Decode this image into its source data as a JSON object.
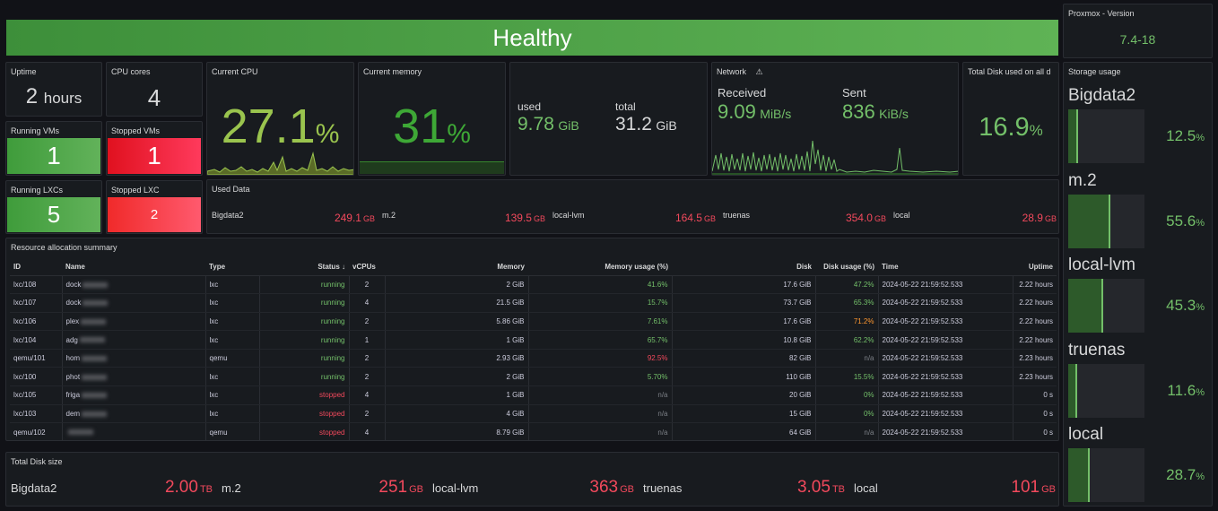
{
  "health": {
    "text": "Healthy",
    "color": "#56a64b"
  },
  "version": {
    "title": "Proxmox - Version",
    "value": "7.4-18"
  },
  "uptime": {
    "title": "Uptime",
    "value": "2",
    "unit": "hours"
  },
  "cpu_cores": {
    "title": "CPU cores",
    "value": "4"
  },
  "running_vms": {
    "title": "Running VMs",
    "value": "1"
  },
  "stopped_vms": {
    "title": "Stopped VMs",
    "value": "1"
  },
  "running_lxcs": {
    "title": "Running LXCs",
    "value": "5"
  },
  "stopped_lxc": {
    "title": "Stopped LXC",
    "value": "2"
  },
  "current_cpu": {
    "title": "Current CPU",
    "value": "27.1",
    "unit": "%"
  },
  "current_memory": {
    "title": "Current memory",
    "value": "31",
    "unit": "%"
  },
  "memory": {
    "used_label": "used",
    "used_value": "9.78",
    "used_unit": "GiB",
    "total_label": "total",
    "total_value": "31.2",
    "total_unit": "GiB"
  },
  "network": {
    "title": "Network",
    "received_label": "Received",
    "received_value": "9.09",
    "received_unit": "MiB/s",
    "sent_label": "Sent",
    "sent_value": "836",
    "sent_unit": "KiB/s"
  },
  "total_disk_used": {
    "title": "Total Disk used on all d",
    "value": "16.9",
    "unit": "%"
  },
  "used_data": {
    "title": "Used Data",
    "items": [
      {
        "name": "Bigdata2",
        "value": "249.1",
        "unit": "GB"
      },
      {
        "name": "m.2",
        "value": "139.5",
        "unit": "GB"
      },
      {
        "name": "local-lvm",
        "value": "164.5",
        "unit": "GB"
      },
      {
        "name": "truenas",
        "value": "354.0",
        "unit": "GB"
      },
      {
        "name": "local",
        "value": "28.9",
        "unit": "GB"
      }
    ]
  },
  "resource": {
    "title": "Resource allocation summary",
    "columns": [
      "ID",
      "Name",
      "Type",
      "Status",
      "vCPUs",
      "Memory",
      "Memory usage (%)",
      "Disk",
      "Disk usage (%)",
      "Time",
      "Uptime"
    ],
    "sort_icon": "↓",
    "rows": [
      {
        "id": "lxc/108",
        "name": "dock",
        "type": "lxc",
        "status": "running",
        "vcpus": "2",
        "memory": "2 GiB",
        "mem_usage": "41.6%",
        "disk": "17.6 GiB",
        "disk_usage": "47.2%",
        "time": "2024-05-22 21:59:52.533",
        "uptime": "2.22 hours"
      },
      {
        "id": "lxc/107",
        "name": "dock",
        "type": "lxc",
        "status": "running",
        "vcpus": "4",
        "memory": "21.5 GiB",
        "mem_usage": "15.7%",
        "disk": "73.7 GiB",
        "disk_usage": "65.3%",
        "time": "2024-05-22 21:59:52.533",
        "uptime": "2.22 hours"
      },
      {
        "id": "lxc/106",
        "name": "plex",
        "type": "lxc",
        "status": "running",
        "vcpus": "2",
        "memory": "5.86 GiB",
        "mem_usage": "7.61%",
        "disk": "17.6 GiB",
        "disk_usage": "71.2%",
        "time": "2024-05-22 21:59:52.533",
        "uptime": "2.22 hours"
      },
      {
        "id": "lxc/104",
        "name": "adg",
        "type": "lxc",
        "status": "running",
        "vcpus": "1",
        "memory": "1 GiB",
        "mem_usage": "65.7%",
        "disk": "10.8 GiB",
        "disk_usage": "62.2%",
        "time": "2024-05-22 21:59:52.533",
        "uptime": "2.22 hours"
      },
      {
        "id": "qemu/101",
        "name": "hom",
        "type": "qemu",
        "status": "running",
        "vcpus": "2",
        "memory": "2.93 GiB",
        "mem_usage": "92.5%",
        "disk": "82 GiB",
        "disk_usage": "n/a",
        "time": "2024-05-22 21:59:52.533",
        "uptime": "2.23 hours"
      },
      {
        "id": "lxc/100",
        "name": "phot",
        "type": "lxc",
        "status": "running",
        "vcpus": "2",
        "memory": "2 GiB",
        "mem_usage": "5.70%",
        "disk": "110 GiB",
        "disk_usage": "15.5%",
        "time": "2024-05-22 21:59:52.533",
        "uptime": "2.23 hours"
      },
      {
        "id": "lxc/105",
        "name": "friga",
        "type": "lxc",
        "status": "stopped",
        "vcpus": "4",
        "memory": "1 GiB",
        "mem_usage": "n/a",
        "disk": "20 GiB",
        "disk_usage": "0%",
        "time": "2024-05-22 21:59:52.533",
        "uptime": "0 s"
      },
      {
        "id": "lxc/103",
        "name": "dem",
        "type": "lxc",
        "status": "stopped",
        "vcpus": "2",
        "memory": "4 GiB",
        "mem_usage": "n/a",
        "disk": "15 GiB",
        "disk_usage": "0%",
        "time": "2024-05-22 21:59:52.533",
        "uptime": "0 s"
      },
      {
        "id": "qemu/102",
        "name": "",
        "type": "qemu",
        "status": "stopped",
        "vcpus": "4",
        "memory": "8.79 GiB",
        "mem_usage": "n/a",
        "disk": "64 GiB",
        "disk_usage": "n/a",
        "time": "2024-05-22 21:59:52.533",
        "uptime": "0 s"
      }
    ]
  },
  "total_disk_size": {
    "title": "Total Disk size",
    "items": [
      {
        "name": "Bigdata2",
        "value": "2.00",
        "unit": "TB"
      },
      {
        "name": "m.2",
        "value": "251",
        "unit": "GB"
      },
      {
        "name": "local-lvm",
        "value": "363",
        "unit": "GB"
      },
      {
        "name": "truenas",
        "value": "3.05",
        "unit": "TB"
      },
      {
        "name": "local",
        "value": "101",
        "unit": "GB"
      }
    ]
  },
  "storage_usage": {
    "title": "Storage usage",
    "items": [
      {
        "name": "Bigdata2",
        "value": "12.5",
        "unit": "%",
        "percent": 12.5
      },
      {
        "name": "m.2",
        "value": "55.6",
        "unit": "%",
        "percent": 55.6
      },
      {
        "name": "local-lvm",
        "value": "45.3",
        "unit": "%",
        "percent": 45.3
      },
      {
        "name": "truenas",
        "value": "11.6",
        "unit": "%",
        "percent": 11.6
      },
      {
        "name": "local",
        "value": "28.7",
        "unit": "%",
        "percent": 28.7
      }
    ]
  }
}
